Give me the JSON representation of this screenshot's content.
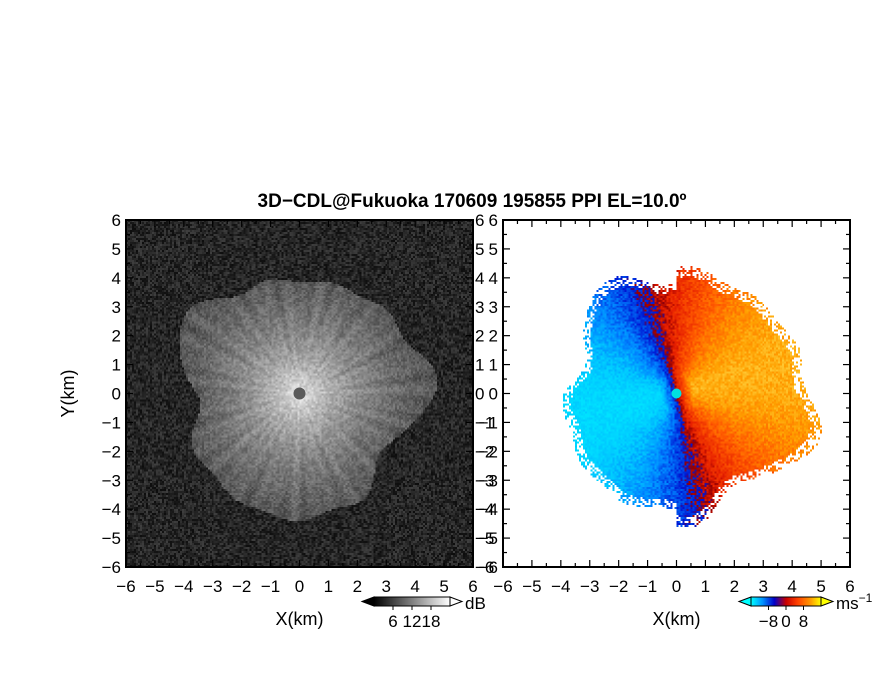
{
  "figure": {
    "title": "3D−CDL@Fukuoka 170609 195855 PPI EL=10.0º"
  },
  "chart_data": [
    {
      "type": "heatmap",
      "panel": "left",
      "quantity": "backscatter intensity",
      "xlabel": "X(km)",
      "ylabel": "Y(km)",
      "xlim": [
        -6,
        6
      ],
      "ylim": [
        -6,
        6
      ],
      "xticks": [
        "−6",
        "−5",
        "−4",
        "−3",
        "−2",
        "−1",
        "0",
        "1",
        "2",
        "3",
        "4",
        "5",
        "6"
      ],
      "yticks": [
        "−6",
        "−5",
        "−4",
        "−3",
        "−2",
        "−1",
        "0",
        "1",
        "2",
        "3",
        "4",
        "5",
        "6"
      ],
      "colorbar": {
        "unit": "dB",
        "range": [
          0,
          24
        ],
        "ticks": [
          6,
          12,
          18
        ],
        "tick_labels": [
          "6",
          "12",
          "18"
        ],
        "colors": [
          "#000000",
          "#ffffff"
        ]
      },
      "radar_center": [
        0,
        0
      ],
      "echo_max_range_km": 4.8
    },
    {
      "type": "heatmap",
      "panel": "right",
      "quantity": "Doppler radial velocity",
      "xlabel": "X(km)",
      "ylabel": "",
      "xlim": [
        -6,
        6
      ],
      "ylim": [
        -6,
        6
      ],
      "xticks": [
        "−6",
        "−5",
        "−4",
        "−3",
        "−2",
        "−1",
        "0",
        "1",
        "2",
        "3",
        "4",
        "5",
        "6"
      ],
      "yticks": [
        "−6",
        "−5",
        "−4",
        "−3",
        "−2",
        "−1",
        "0",
        "1",
        "2",
        "3",
        "4",
        "5",
        "6"
      ],
      "colorbar": {
        "unit": "ms",
        "unit_exponent": "−1",
        "range": [
          -16,
          16
        ],
        "ticks": [
          -8,
          0,
          8
        ],
        "tick_labels": [
          "−8",
          "0",
          "8"
        ],
        "colors": [
          "#00ffff",
          "#0090ff",
          "#0000c8",
          "#c80000",
          "#ff4000",
          "#ff9000",
          "#ffff00"
        ]
      },
      "radar_center": [
        0,
        0
      ],
      "echo_max_range_km": 5.2
    }
  ]
}
